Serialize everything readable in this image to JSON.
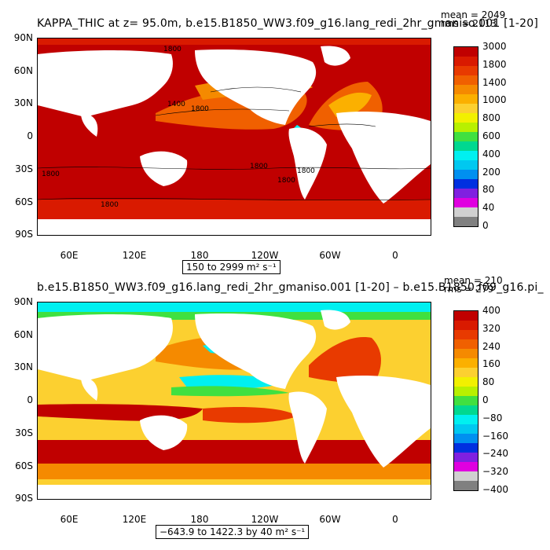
{
  "panel_top": {
    "title": "KAPPA_THIC at z=   95.0m, b.e15.B1850_WW3.f09_g16.lang_redi_2hr_gmaniso.001 [1-20]",
    "mean": "mean = 2049",
    "rms": "rms = 2113",
    "range_label": "150 to 2999 m² s⁻¹",
    "colorbar_labels": [
      "3000",
      "1800",
      "1400",
      "1000",
      "800",
      "600",
      "400",
      "200",
      "80",
      "40",
      "0"
    ],
    "colorbar_colors": [
      "#c00000",
      "#d91a00",
      "#e83a00",
      "#f06000",
      "#f58a00",
      "#fbb000",
      "#fcd030",
      "#f2f000",
      "#b8f000",
      "#40e040",
      "#00d890",
      "#00f0f0",
      "#00c8f0",
      "#0090f0",
      "#0030e0",
      "#8020e0",
      "#e000e0",
      "#d0d0d0",
      "#808080"
    ],
    "contour_labels": [
      "1800",
      "1400",
      "1800",
      "1800",
      "1800",
      "1800",
      "1800",
      "1800"
    ]
  },
  "panel_bottom": {
    "title": "b.e15.B1850_WW3.f09_g16.lang_redi_2hr_gmaniso.001 [1-20] – b.e15.B1850.f09_g16.pi_",
    "mean": "mean = 210",
    "rms": "rms = 279",
    "range_label": "−643.9 to 1422.3 by 40 m² s⁻¹",
    "colorbar_labels": [
      "400",
      "320",
      "240",
      "160",
      "80",
      "0",
      "−80",
      "−160",
      "−240",
      "−320",
      "−400"
    ],
    "colorbar_colors": [
      "#c00000",
      "#d91a00",
      "#e83a00",
      "#f06000",
      "#f58a00",
      "#fbb000",
      "#fcd030",
      "#f2f000",
      "#b8f000",
      "#40e040",
      "#00d890",
      "#00f0f0",
      "#00c8f0",
      "#0090f0",
      "#0030e0",
      "#8020e0",
      "#e000e0",
      "#d0d0d0",
      "#808080"
    ]
  },
  "axes": {
    "lat_labels": [
      "90N",
      "60N",
      "30N",
      "0",
      "30S",
      "60S",
      "90S"
    ],
    "lon_labels": [
      "60E",
      "120E",
      "180",
      "120W",
      "60W",
      "0"
    ]
  }
}
